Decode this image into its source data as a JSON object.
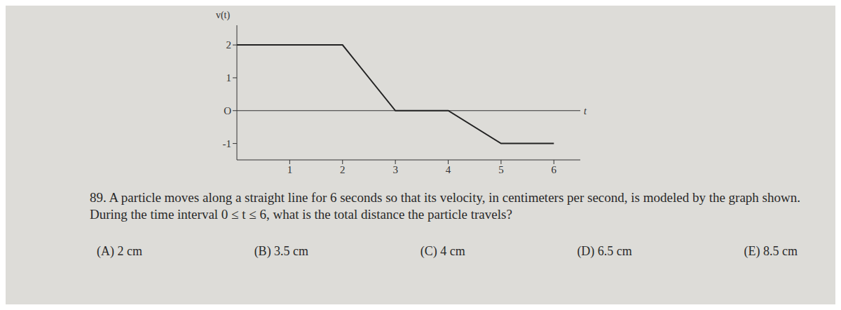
{
  "chart_data": {
    "type": "line",
    "y_label": "v(t)",
    "x_label": "t",
    "x": [
      0,
      2,
      3,
      4,
      5,
      6
    ],
    "values": [
      2,
      2,
      0,
      0,
      -1,
      -1
    ],
    "color": "#222222",
    "xlim": [
      0,
      6.5
    ],
    "xticks": [
      1,
      2,
      3,
      4,
      5,
      6
    ],
    "ylim": [
      -1.5,
      2.6
    ],
    "yticks": [
      -1,
      {
        "value": 0,
        "label": "O"
      },
      1,
      2
    ],
    "grid": false,
    "annotations": [
      "89. A particle moves along a straight line for 6 seconds so that its velocity, in centimeters per second, is modeled by the graph shown. During the time interval 0 ≤ t ≤ 6, what is the total distance the particle travels?",
      "(A) 2 cm",
      "(B) 3.5 cm",
      "(C) 4 cm",
      "(D) 6.5 cm",
      "(E) 8.5 cm"
    ]
  }
}
